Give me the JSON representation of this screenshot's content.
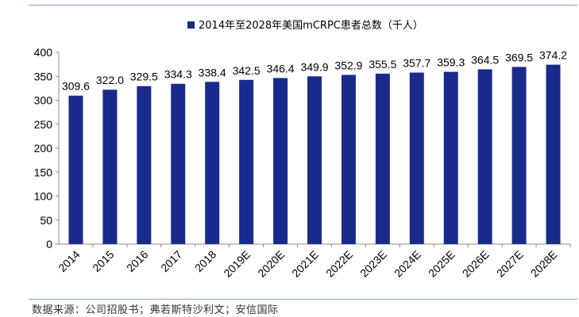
{
  "chart_data": {
    "type": "bar",
    "title": "",
    "xlabel": "",
    "ylabel": "",
    "categories": [
      "2014",
      "2015",
      "2016",
      "2017",
      "2018",
      "2019E",
      "2020E",
      "2021E",
      "2022E",
      "2023E",
      "2024E",
      "2025E",
      "2026E",
      "2027E",
      "2028E"
    ],
    "series": [
      {
        "name": "2014年至2028年美国mCRPC患者总数（千人）",
        "color": "#1a2a8c",
        "values": [
          309.6,
          322.0,
          329.5,
          334.3,
          338.4,
          342.5,
          346.4,
          349.9,
          352.9,
          355.5,
          357.7,
          359.3,
          364.5,
          369.5,
          374.2
        ],
        "labels": [
          "309.6",
          "322.0",
          "329.5",
          "334.3",
          "338.4",
          "342.5",
          "346.4",
          "349.9",
          "352.9",
          "355.5",
          "357.7",
          "359.3",
          "364.5",
          "369.5",
          "374.2"
        ]
      }
    ],
    "ylim": [
      0,
      400
    ],
    "yticks": [
      0,
      50,
      100,
      150,
      200,
      250,
      300,
      350,
      400
    ],
    "grid": false,
    "legend_position": "top"
  },
  "footer": {
    "source": "数据来源：公司招股书；弗若斯特沙利文；安信国际"
  }
}
